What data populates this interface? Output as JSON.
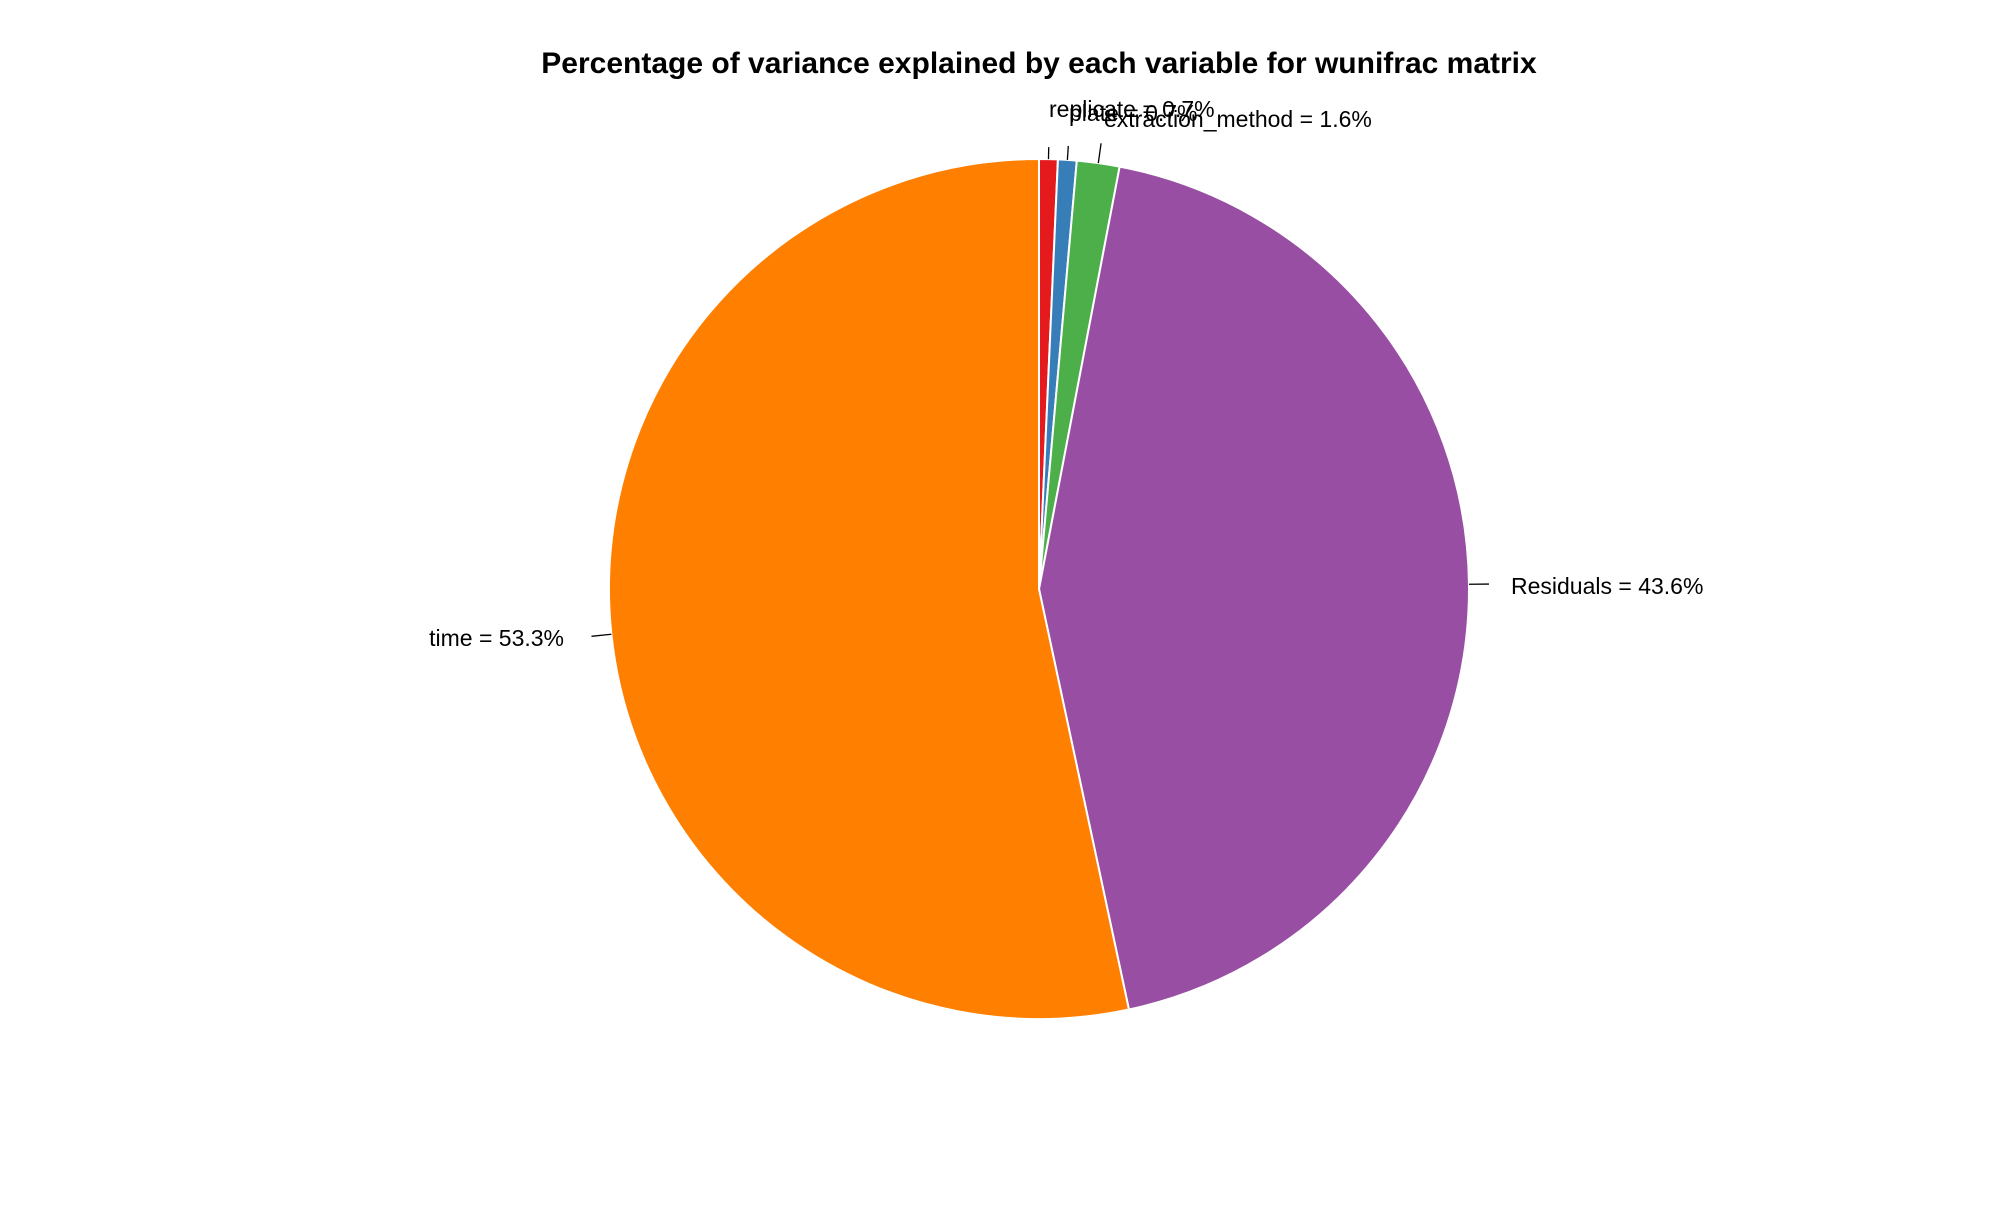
{
  "chart_data": {
    "type": "pie",
    "title": "Percentage of variance explained by each variable for wunifrac matrix",
    "start_angle": "12 o'clock",
    "direction": "clockwise",
    "slices": [
      {
        "label": "replicate = 0.7%",
        "name": "replicate",
        "value": 0.7,
        "color": "#e41a1c"
      },
      {
        "label": "plate = 0.7%",
        "name": "plate",
        "value": 0.7,
        "color": "#377eb8"
      },
      {
        "label": "extraction_method = 1.6%",
        "name": "extraction_method",
        "value": 1.6,
        "color": "#4daf4a"
      },
      {
        "label": "Residuals = 43.6%",
        "name": "Residuals",
        "value": 43.6,
        "color": "#984ea3"
      },
      {
        "label": "time = 53.3%",
        "name": "time",
        "value": 53.3,
        "color": "#ff7f00"
      }
    ],
    "legend": "none"
  }
}
